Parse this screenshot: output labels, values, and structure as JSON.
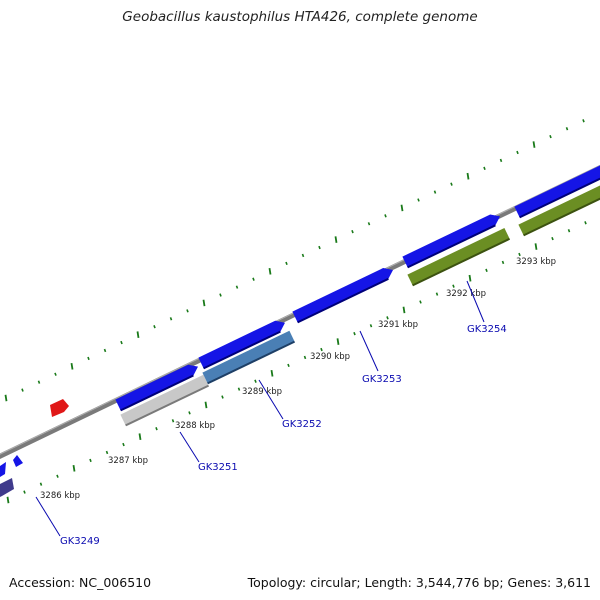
{
  "title": "Geobacillus kaustophilus HTA426, complete genome",
  "footer": {
    "accession": "Accession: NC_006510",
    "topology": "Topology: circular; Length: 3,544,776 bp; Genes: 3,611"
  },
  "colors": {
    "backbone": "#808080",
    "tick": "#1a7a1a",
    "forward_gene": "#1515e6",
    "red_feature": "#e01818",
    "label_link": "#0a0ab0",
    "cog_blue": "#4a7fb5",
    "cog_gray": "#c8c8c8",
    "cog_olive": "#6b8e23",
    "cog_purple": "#3f3a8c"
  },
  "scale_labels": [
    "3286 kbp",
    "3287 kbp",
    "3288 kbp",
    "3289 kbp",
    "3290 kbp",
    "3291 kbp",
    "3292 kbp",
    "3293 kbp"
  ],
  "gene_labels": [
    "GK3249",
    "GK3251",
    "GK3252",
    "GK3253",
    "GK3254"
  ]
}
